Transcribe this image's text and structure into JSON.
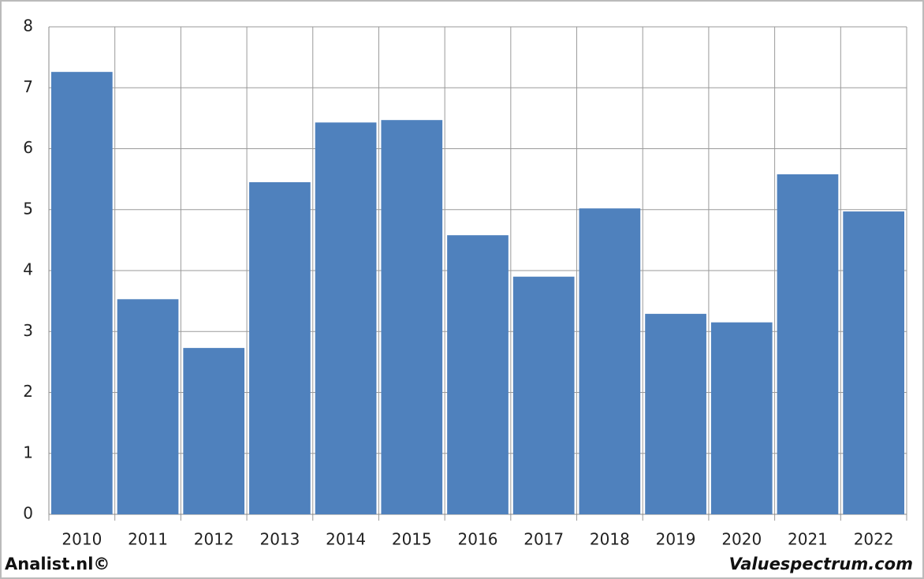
{
  "chart_data": {
    "type": "bar",
    "categories": [
      "2010",
      "2011",
      "2012",
      "2013",
      "2014",
      "2015",
      "2016",
      "2017",
      "2018",
      "2019",
      "2020",
      "2021",
      "2022"
    ],
    "values": [
      7.26,
      3.53,
      2.73,
      5.45,
      6.43,
      6.47,
      4.58,
      3.9,
      5.02,
      3.29,
      3.15,
      5.58,
      4.97
    ],
    "color": "#4f81bd",
    "ylim": [
      0,
      8
    ],
    "yticks": [
      0,
      1,
      2,
      3,
      4,
      5,
      6,
      7,
      8
    ],
    "grid": true
  },
  "footer": {
    "left": "Analist.nl©",
    "right": "Valuespectrum.com"
  }
}
